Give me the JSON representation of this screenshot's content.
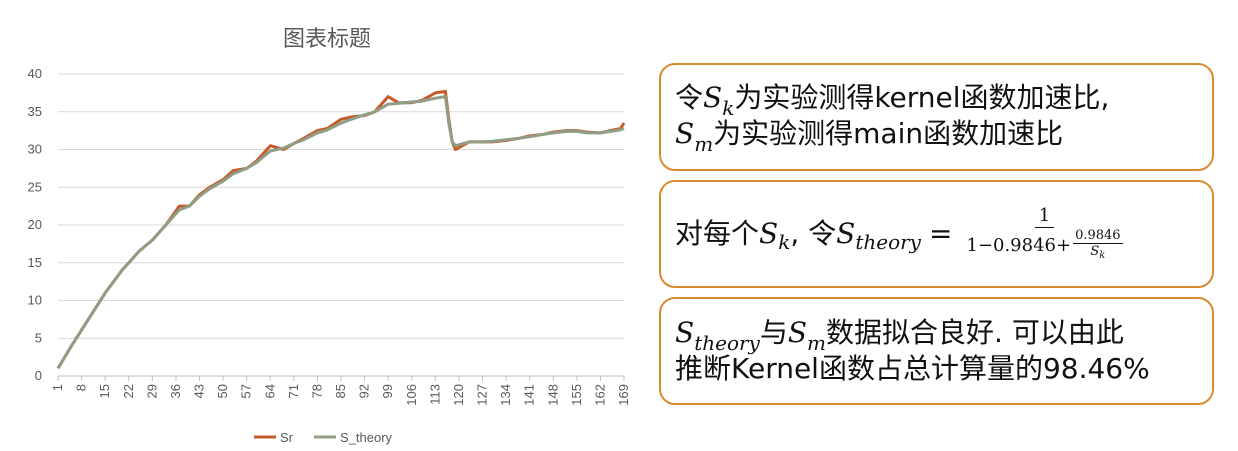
{
  "chart_data": {
    "type": "line",
    "title": "图表标题",
    "xlabel": "",
    "ylabel": "",
    "ylim": [
      0,
      40
    ],
    "yticks": [
      "0",
      "5",
      "10",
      "15",
      "20",
      "25",
      "30",
      "35",
      "40"
    ],
    "xlim": [
      1,
      169
    ],
    "xticks": [
      "1",
      "8",
      "15",
      "22",
      "29",
      "36",
      "43",
      "50",
      "57",
      "64",
      "71",
      "78",
      "85",
      "92",
      "99",
      "106",
      "113",
      "120",
      "127",
      "134",
      "141",
      "148",
      "155",
      "162",
      "169"
    ],
    "grid": "horizontal",
    "legend_position": "bottom",
    "series": [
      {
        "name": "Sr",
        "color": "#c55a2a",
        "points": [
          [
            1,
            1
          ],
          [
            5,
            4
          ],
          [
            10,
            7.5
          ],
          [
            15,
            11
          ],
          [
            20,
            14
          ],
          [
            25,
            16.5
          ],
          [
            29,
            18
          ],
          [
            33,
            20
          ],
          [
            37,
            22.5
          ],
          [
            40,
            22.5
          ],
          [
            43,
            24
          ],
          [
            46,
            25
          ],
          [
            50,
            26
          ],
          [
            53,
            27.2
          ],
          [
            57,
            27.5
          ],
          [
            60,
            28.5
          ],
          [
            64,
            30.5
          ],
          [
            68,
            30
          ],
          [
            71,
            30.8
          ],
          [
            74,
            31.5
          ],
          [
            78,
            32.5
          ],
          [
            81,
            32.8
          ],
          [
            85,
            34
          ],
          [
            88,
            34.3
          ],
          [
            92,
            34.5
          ],
          [
            95,
            35
          ],
          [
            99,
            37
          ],
          [
            102,
            36.2
          ],
          [
            106,
            36.2
          ],
          [
            109,
            36.5
          ],
          [
            113,
            37.5
          ],
          [
            116,
            37.7
          ],
          [
            117,
            34
          ],
          [
            118,
            31
          ],
          [
            119,
            30
          ],
          [
            123,
            31
          ],
          [
            127,
            31
          ],
          [
            130,
            31
          ],
          [
            134,
            31.2
          ],
          [
            138,
            31.5
          ],
          [
            141,
            31.8
          ],
          [
            145,
            32
          ],
          [
            148,
            32.3
          ],
          [
            152,
            32.5
          ],
          [
            155,
            32.5
          ],
          [
            158,
            32.3
          ],
          [
            162,
            32.2
          ],
          [
            165,
            32.5
          ],
          [
            168,
            32.8
          ],
          [
            169,
            33.5
          ]
        ]
      },
      {
        "name": "S_theory",
        "color": "#8f9e85",
        "points": [
          [
            1,
            1
          ],
          [
            5,
            4
          ],
          [
            10,
            7.5
          ],
          [
            15,
            11
          ],
          [
            20,
            14
          ],
          [
            25,
            16.5
          ],
          [
            29,
            18
          ],
          [
            33,
            20
          ],
          [
            37,
            22
          ],
          [
            40,
            22.5
          ],
          [
            43,
            23.8
          ],
          [
            46,
            24.8
          ],
          [
            50,
            25.8
          ],
          [
            53,
            26.8
          ],
          [
            57,
            27.5
          ],
          [
            60,
            28.3
          ],
          [
            64,
            29.8
          ],
          [
            68,
            30.2
          ],
          [
            71,
            30.8
          ],
          [
            74,
            31.3
          ],
          [
            78,
            32.2
          ],
          [
            81,
            32.6
          ],
          [
            85,
            33.5
          ],
          [
            88,
            34
          ],
          [
            92,
            34.6
          ],
          [
            95,
            35
          ],
          [
            99,
            36
          ],
          [
            102,
            36.1
          ],
          [
            106,
            36.3
          ],
          [
            109,
            36.4
          ],
          [
            113,
            36.8
          ],
          [
            116,
            37
          ],
          [
            117,
            33.5
          ],
          [
            118,
            31
          ],
          [
            119,
            30.5
          ],
          [
            123,
            31
          ],
          [
            127,
            31
          ],
          [
            130,
            31.1
          ],
          [
            134,
            31.3
          ],
          [
            138,
            31.5
          ],
          [
            141,
            31.7
          ],
          [
            145,
            32
          ],
          [
            148,
            32.2
          ],
          [
            152,
            32.4
          ],
          [
            155,
            32.4
          ],
          [
            158,
            32.2
          ],
          [
            162,
            32.2
          ],
          [
            165,
            32.4
          ],
          [
            168,
            32.6
          ],
          [
            169,
            32.8
          ]
        ]
      }
    ]
  },
  "boxes": {
    "box1": {
      "line1_prefix": "令",
      "line1_var": "S",
      "line1_sub": "k",
      "line1_suffix": "为实验测得kernel函数加速比,",
      "line2_var": "S",
      "line2_sub": "m",
      "line2_suffix": "为实验测得main函数加速比"
    },
    "box2": {
      "prefix": "对每个",
      "var1": "S",
      "sub1": "k",
      "mid": ", 令",
      "var2": "S",
      "sub2": "theory",
      "equals": "=",
      "frac_num": "1",
      "frac_den": "1−0.9846+",
      "mini_num": "0.9846",
      "mini_den": "S",
      "mini_den_sub": "k"
    },
    "box3": {
      "var1": "S",
      "sub1": "theory",
      "mid1": "与",
      "var2": "S",
      "sub2": "m",
      "line1_suffix": "数据拟合良好. 可以由此",
      "line2": "推断Kernel函数占总计算量的98.46%"
    }
  }
}
